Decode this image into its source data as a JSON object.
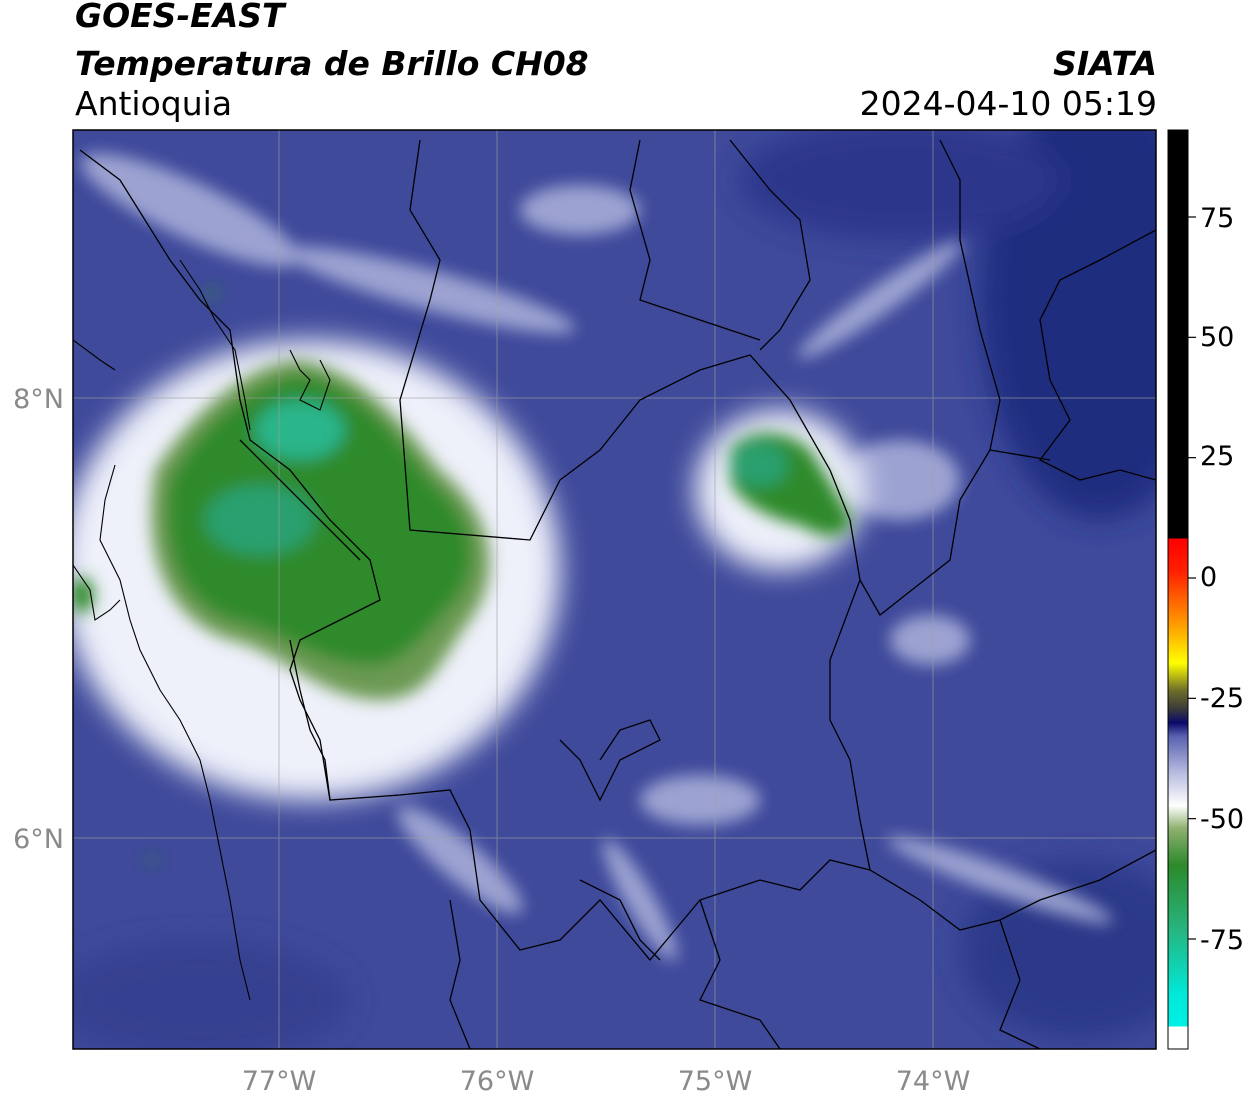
{
  "header": {
    "title_line1": "GOES-EAST",
    "title_line2": "Temperatura de Brillo CH08",
    "region": "Antioquia",
    "organization": "SIATA",
    "datetime": "2024-04-10 05:19"
  },
  "map": {
    "lon_ticks": [
      "77°W",
      "76°W",
      "75°W",
      "74°W"
    ],
    "lat_ticks": [
      "8°N",
      "6°N"
    ],
    "colors": {
      "background": "#3f4a9b",
      "deep_blue": "#1c2a7a",
      "pale": "#c9cde6",
      "green": "#2f8a2c",
      "teal": "#2bb58a",
      "border": "#000000",
      "grid": "#a0a0a0"
    }
  },
  "colorbar": {
    "tick_labels": [
      "75",
      "50",
      "25",
      "0",
      "-25",
      "-50",
      "-75"
    ],
    "tick_values": [
      75,
      50,
      25,
      0,
      -25,
      -50,
      -75
    ]
  }
}
